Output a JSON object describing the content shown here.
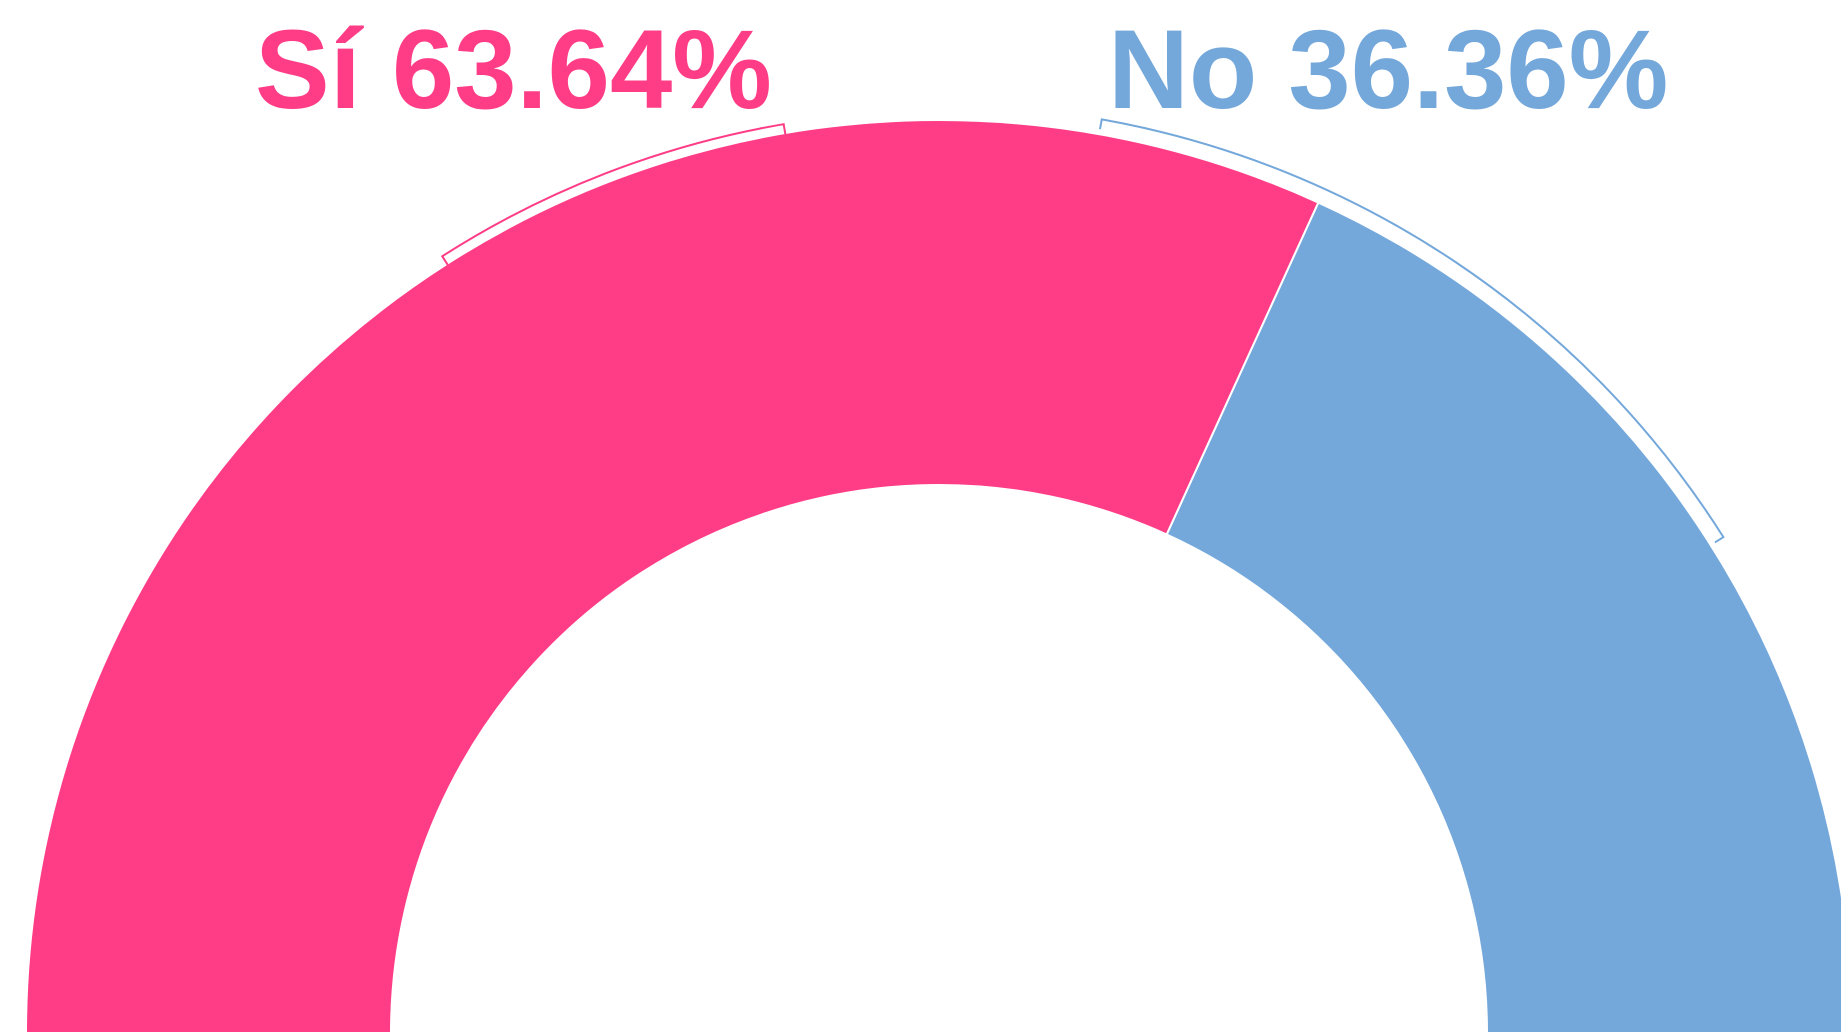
{
  "chart_data": {
    "type": "donut",
    "half": true,
    "categories": [
      "Sí",
      "No"
    ],
    "values": [
      63.64,
      36.36
    ],
    "value_labels": [
      "63.64%",
      "36.36%"
    ],
    "colors": [
      "#ff3d87",
      "#74a8db"
    ]
  }
}
